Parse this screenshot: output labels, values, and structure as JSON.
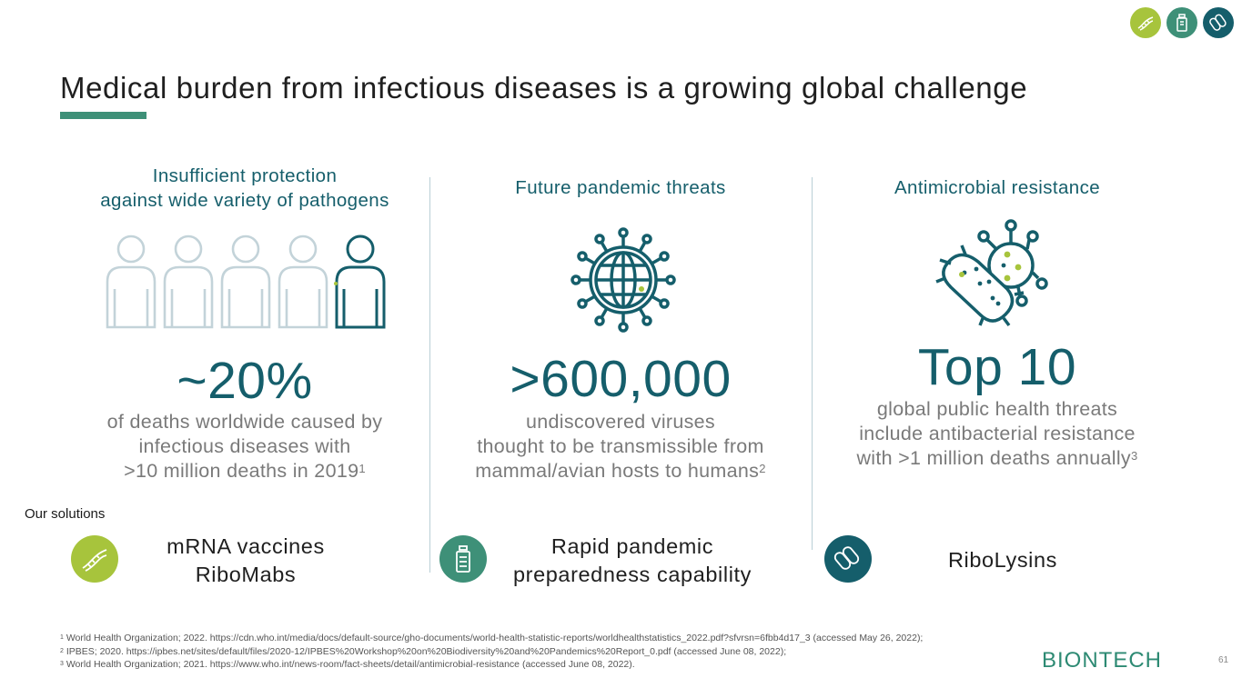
{
  "title": "Medical burden from infectious diseases is a growing global challenge",
  "header_icons": [
    "dna-icon",
    "vaccine-vial-icon",
    "bacteria-icon"
  ],
  "columns": [
    {
      "heading_line1": "Insufficient protection",
      "heading_line2": "against wide variety of pathogens",
      "icon": "people-icon",
      "stat": "~20%",
      "desc_line1": "of deaths worldwide caused by",
      "desc_line2": "infectious diseases with",
      "desc_line3": ">10 million deaths in 2019",
      "desc_ref": "1"
    },
    {
      "heading_line1": "Future pandemic threats",
      "icon": "virus-globe-icon",
      "stat": ">600,000",
      "desc_line1": "undiscovered viruses",
      "desc_line2": "thought to be transmissible from",
      "desc_line3": "mammal/avian hosts to humans",
      "desc_ref": "2"
    },
    {
      "heading_line1": "Antimicrobial resistance",
      "icon": "bacteria-virus-icon",
      "stat": "Top 10",
      "desc_line1": "global public health threats",
      "desc_line2": "include antibacterial resistance",
      "desc_line3": "with >1 million deaths annually",
      "desc_ref": "3"
    }
  ],
  "solutions": {
    "label": "Our solutions",
    "items": [
      {
        "line1": "mRNA vaccines",
        "line2": "RiboMabs",
        "icon": "dna-icon",
        "color": "#a7c43c"
      },
      {
        "line1": "Rapid pandemic",
        "line2": "preparedness capability",
        "icon": "vaccine-vial-icon",
        "color": "#3e9078"
      },
      {
        "line1": "RiboLysins",
        "icon": "bacteria-icon",
        "color": "#155e6b"
      }
    ]
  },
  "references": [
    {
      "num": "1",
      "text": "World Health Organization; 2022. https://cdn.who.int/media/docs/default-source/gho-documents/world-health-statistic-reports/worldhealthstatistics_2022.pdf?sfvrsn=6fbb4d17_3 (accessed May 26, 2022);"
    },
    {
      "num": "2",
      "text": "IPBES; 2020. https://ipbes.net/sites/default/files/2020-12/IPBES%20Workshop%20on%20Biodiversity%20and%20Pandemics%20Report_0.pdf (accessed June 08, 2022);"
    },
    {
      "num": "3",
      "text": "World Health Organization; 2021. https://www.who.int/news-room/fact-sheets/detail/antimicrobial-resistance (accessed June 08, 2022)."
    }
  ],
  "logo": "BIONTECH",
  "page_number": "61",
  "colors": {
    "teal": "#155e6b",
    "green": "#3e9078",
    "lime": "#a7c43c",
    "gray": "#7a7a7a"
  }
}
